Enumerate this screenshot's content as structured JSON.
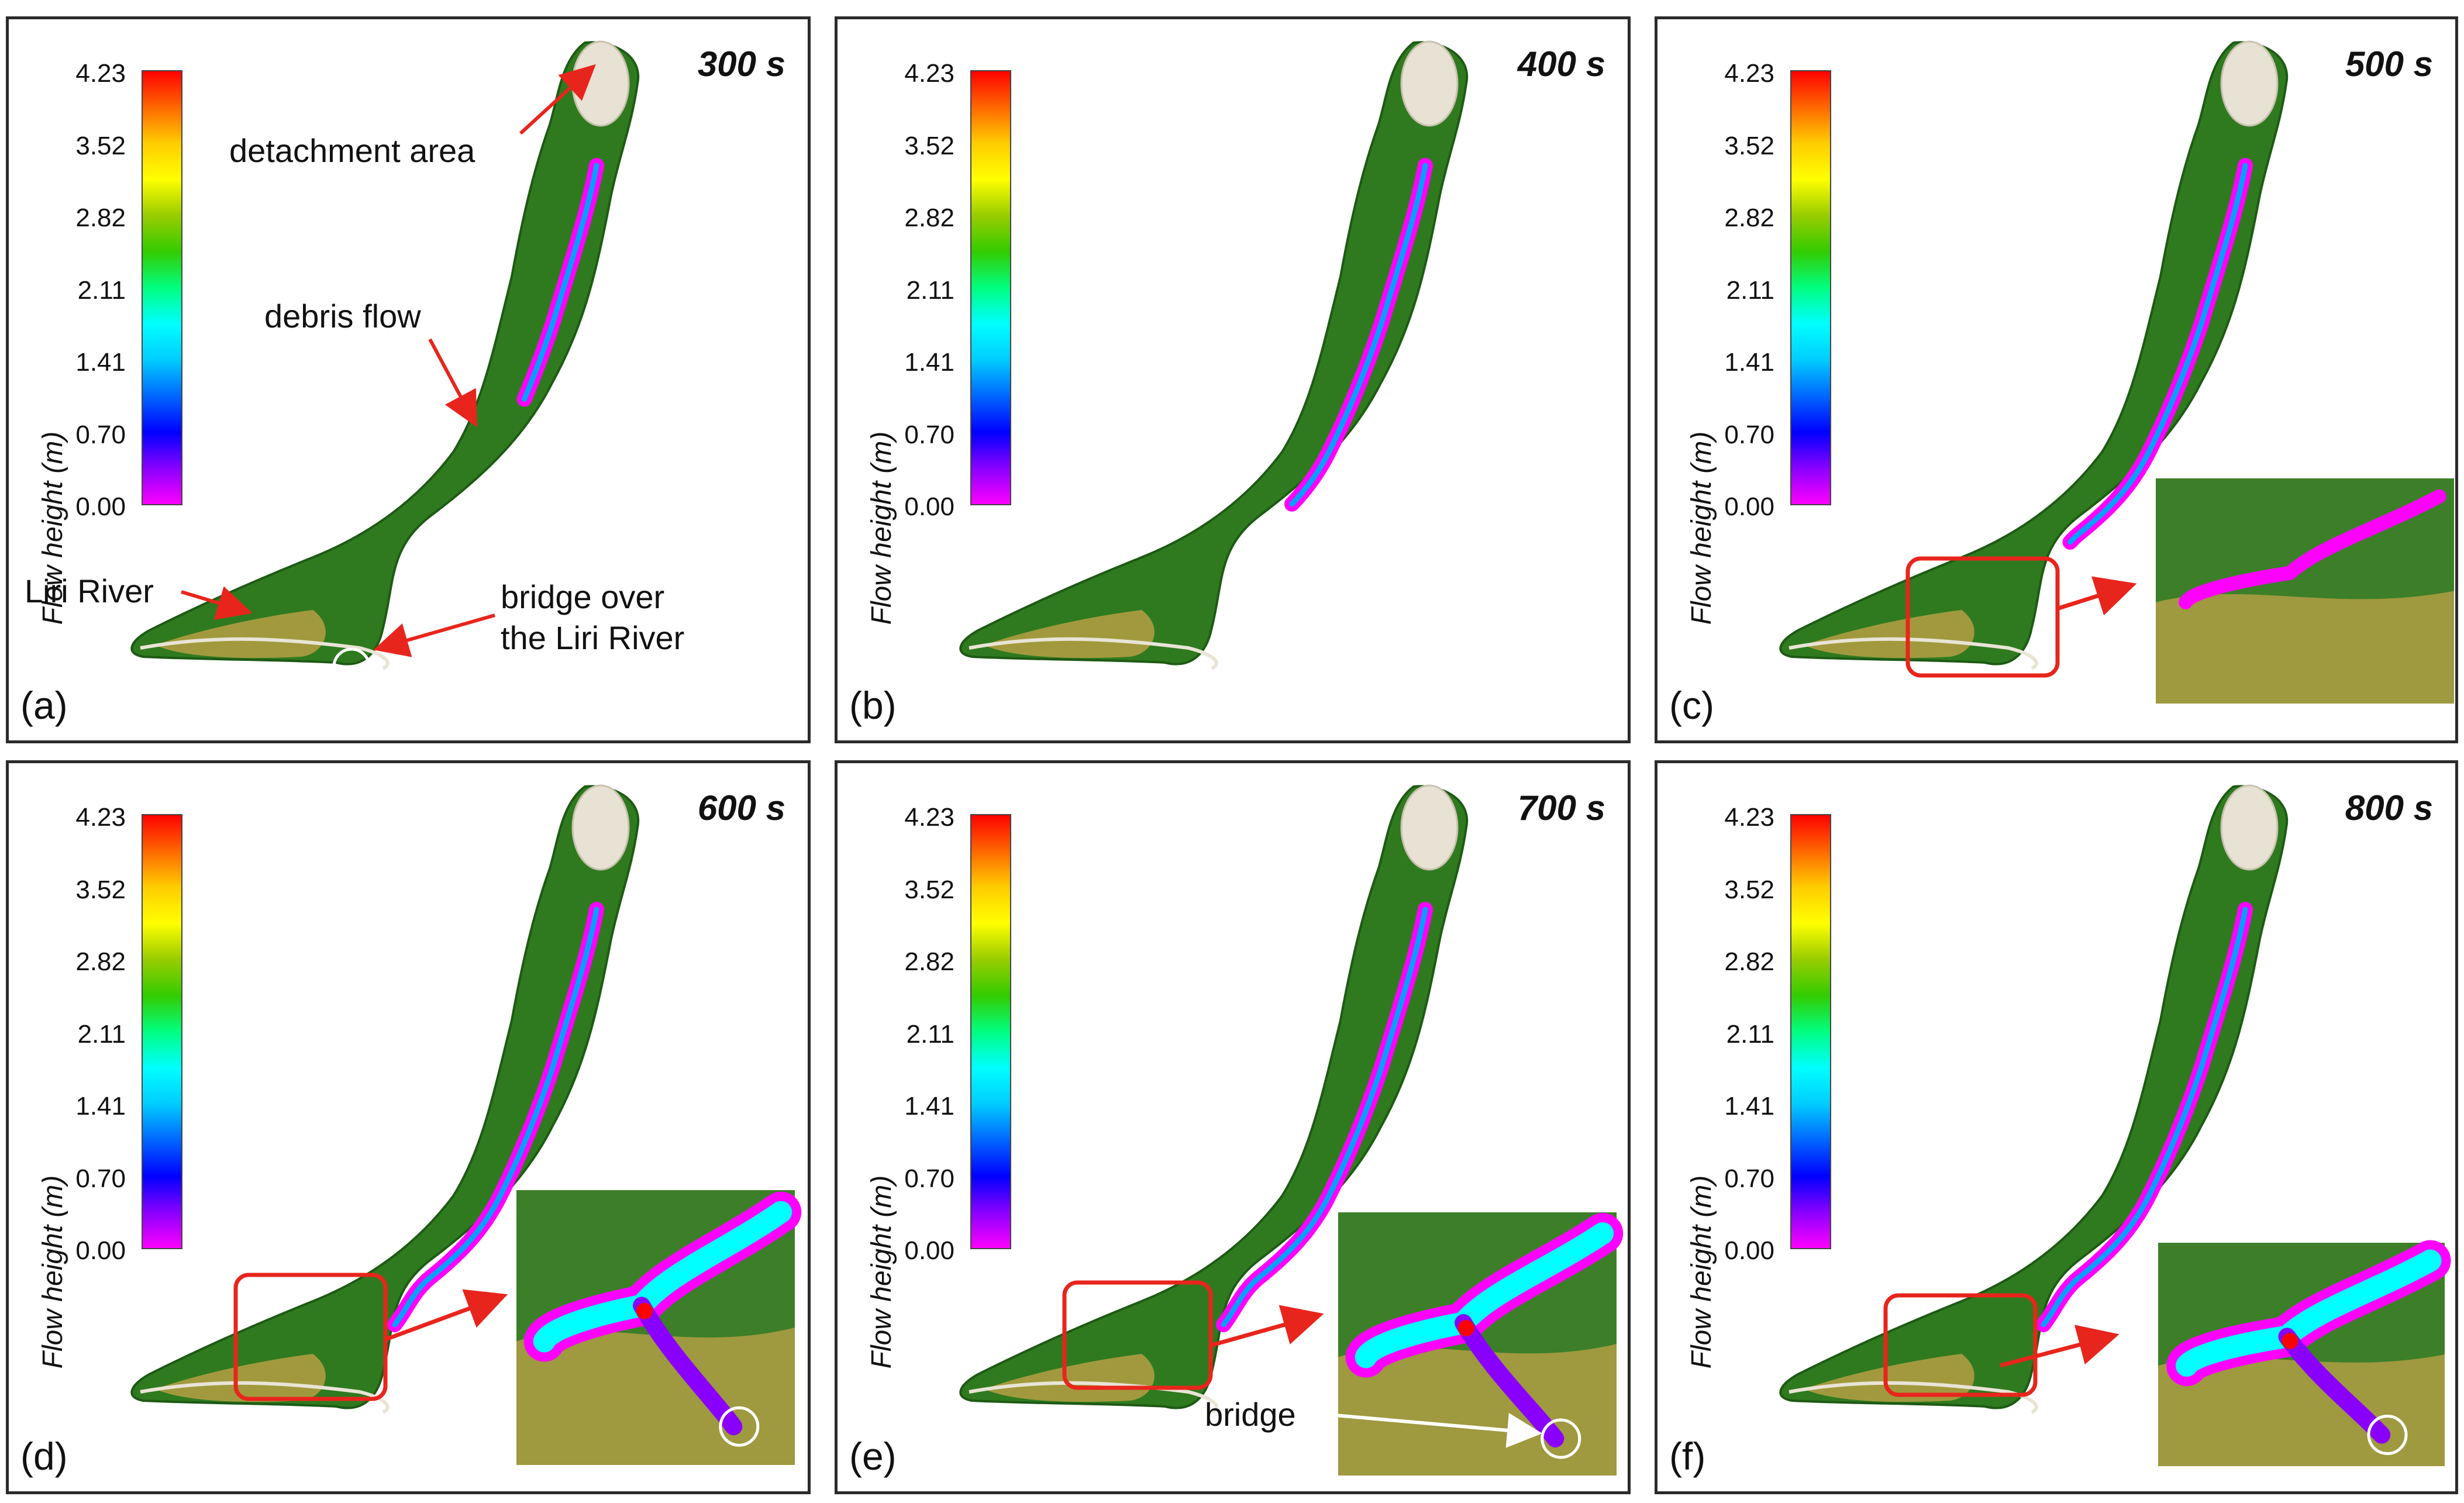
{
  "colorbar": {
    "title": "Flow height (m)",
    "ticks": [
      "4.23",
      "3.52",
      "2.82",
      "2.11",
      "1.41",
      "0.70",
      "0.00"
    ],
    "colors": [
      "#ff00ff",
      "#8a00ff",
      "#0000ff",
      "#0066ff",
      "#00ccff",
      "#00ffff",
      "#00ff80",
      "#33cc00",
      "#99cc00",
      "#ffff00",
      "#ffcc00",
      "#ff6600",
      "#ff0000"
    ]
  },
  "panels": [
    {
      "label": "(a)",
      "time": "300 s",
      "reach": 0.52,
      "zoom": false
    },
    {
      "label": "(b)",
      "time": "400 s",
      "reach": 0.78,
      "zoom": false
    },
    {
      "label": "(c)",
      "time": "500 s",
      "reach": 0.9,
      "zoom": true
    },
    {
      "label": "(d)",
      "time": "600 s",
      "reach": 1.0,
      "zoom": true
    },
    {
      "label": "(e)",
      "time": "700 s",
      "reach": 1.0,
      "zoom": true
    },
    {
      "label": "(f)",
      "time": "800 s",
      "reach": 1.0,
      "zoom": true
    }
  ],
  "annotations": {
    "detachment": "detachment area",
    "debris": "debris flow",
    "liri": "Liri River",
    "bridge_line1": "bridge over",
    "bridge_line2": "the Liri River",
    "bridge": "bridge"
  }
}
